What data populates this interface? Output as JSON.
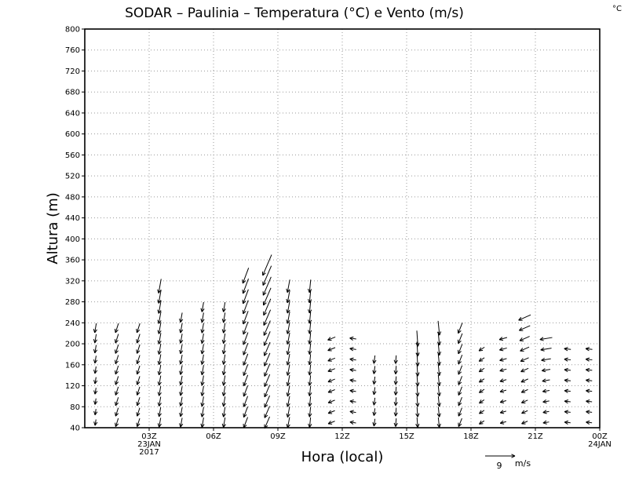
{
  "chart_data": {
    "type": "wind-profile",
    "title": "SODAR – Paulinia – Temperatura (°C) e Vento (m/s)",
    "corner_unit": "°C",
    "xlabel": "Hora (local)",
    "ylabel": "Altura (m)",
    "ylim": [
      40,
      800
    ],
    "xlim": [
      0,
      24
    ],
    "y_ticks": [
      40,
      80,
      120,
      160,
      200,
      240,
      280,
      320,
      360,
      400,
      440,
      480,
      520,
      560,
      600,
      640,
      680,
      720,
      760,
      800
    ],
    "x_ticks": [
      {
        "x": 3,
        "lines": [
          "03Z",
          "23JAN",
          "2017"
        ]
      },
      {
        "x": 6,
        "lines": [
          "06Z"
        ]
      },
      {
        "x": 9,
        "lines": [
          "09Z"
        ]
      },
      {
        "x": 12,
        "lines": [
          "12Z"
        ]
      },
      {
        "x": 15,
        "lines": [
          "15Z"
        ]
      },
      {
        "x": 18,
        "lines": [
          "18Z"
        ]
      },
      {
        "x": 21,
        "lines": [
          "21Z"
        ]
      },
      {
        "x": 24,
        "lines": [
          "00Z",
          "24JAN"
        ]
      }
    ],
    "grid": true,
    "legend": {
      "position": "bottom-right",
      "value": "9",
      "unit": "m/s",
      "reference_speed": 9
    },
    "series": [
      {
        "x": 0,
        "top": 240,
        "u": -0.3,
        "v": -1.8,
        "top_speed": 3
      },
      {
        "x": 1,
        "top": 240,
        "u": -0.8,
        "v": -2.5,
        "top_speed": 3
      },
      {
        "x": 2,
        "top": 240,
        "u": -0.8,
        "v": -2.5,
        "top_speed": 3
      },
      {
        "x": 3,
        "top": 320,
        "u": -0.5,
        "v": -2.8,
        "top_speed": 4.5
      },
      {
        "x": 4,
        "top": 260,
        "u": -0.5,
        "v": -2.8,
        "top_speed": 3
      },
      {
        "x": 5,
        "top": 280,
        "u": -0.5,
        "v": -3.0,
        "top_speed": 3
      },
      {
        "x": 6,
        "top": 280,
        "u": -0.5,
        "v": -3.0,
        "top_speed": 3
      },
      {
        "x": 7,
        "top": 330,
        "u": -1.2,
        "v": -3.2,
        "top_speed": 5
      },
      {
        "x": 8,
        "top": 360,
        "u": -1.5,
        "v": -3.5,
        "top_speed": 7
      },
      {
        "x": 9,
        "top": 320,
        "u": -0.6,
        "v": -3.2,
        "top_speed": 4
      },
      {
        "x": 10,
        "top": 320,
        "u": -0.3,
        "v": -3.0,
        "top_speed": 4
      },
      {
        "x": 11,
        "top": 220,
        "u": -2.0,
        "v": -0.8,
        "top_speed": 2.5
      },
      {
        "x": 12,
        "top": 220,
        "u": -1.8,
        "v": 0.3,
        "top_speed": 2
      },
      {
        "x": 13,
        "top": 180,
        "u": -0.3,
        "v": -2.2,
        "top_speed": 2.5
      },
      {
        "x": 14,
        "top": 180,
        "u": -0.2,
        "v": -2.5,
        "top_speed": 2.5
      },
      {
        "x": 15,
        "top": 220,
        "u": 0.2,
        "v": -3.0,
        "top_speed": 5
      },
      {
        "x": 16,
        "top": 240,
        "u": 0.3,
        "v": -3.0,
        "top_speed": 4.5
      },
      {
        "x": 17,
        "top": 240,
        "u": -1.0,
        "v": -2.5,
        "top_speed": 3.5
      },
      {
        "x": 18,
        "top": 190,
        "u": -1.5,
        "v": -1.0,
        "top_speed": 2
      },
      {
        "x": 19,
        "top": 220,
        "u": -1.8,
        "v": -0.5,
        "top_speed": 2.5
      },
      {
        "x": 20,
        "top": 250,
        "u": -1.8,
        "v": -0.8,
        "top_speed": 4
      },
      {
        "x": 21,
        "top": 220,
        "u": -1.8,
        "v": -0.3,
        "top_speed": 4
      },
      {
        "x": 22,
        "top": 190,
        "u": -1.8,
        "v": 0.2,
        "top_speed": 2
      },
      {
        "x": 23,
        "top": 190,
        "u": -1.8,
        "v": 0.2,
        "top_speed": 2
      }
    ]
  }
}
